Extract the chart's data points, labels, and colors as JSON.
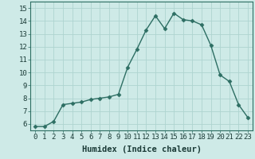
{
  "x": [
    0,
    1,
    2,
    3,
    4,
    5,
    6,
    7,
    8,
    9,
    10,
    11,
    12,
    13,
    14,
    15,
    16,
    17,
    18,
    19,
    20,
    21,
    22,
    23
  ],
  "y": [
    5.8,
    5.8,
    6.2,
    7.5,
    7.6,
    7.7,
    7.9,
    8.0,
    8.1,
    8.3,
    10.4,
    11.8,
    13.3,
    14.4,
    13.4,
    14.6,
    14.1,
    14.0,
    13.7,
    12.1,
    9.8,
    9.3,
    7.5,
    6.5
  ],
  "line_color": "#2d6e63",
  "marker": "D",
  "markersize": 2.5,
  "linewidth": 1.0,
  "bg_color": "#ceeae7",
  "grid_color": "#aed4d0",
  "xlabel": "Humidex (Indice chaleur)",
  "xlabel_fontsize": 7.5,
  "tick_fontsize": 6.5,
  "xlim": [
    -0.5,
    23.5
  ],
  "ylim": [
    5.5,
    15.5
  ],
  "yticks": [
    6,
    7,
    8,
    9,
    10,
    11,
    12,
    13,
    14,
    15
  ],
  "xticks": [
    0,
    1,
    2,
    3,
    4,
    5,
    6,
    7,
    8,
    9,
    10,
    11,
    12,
    13,
    14,
    15,
    16,
    17,
    18,
    19,
    20,
    21,
    22,
    23
  ]
}
